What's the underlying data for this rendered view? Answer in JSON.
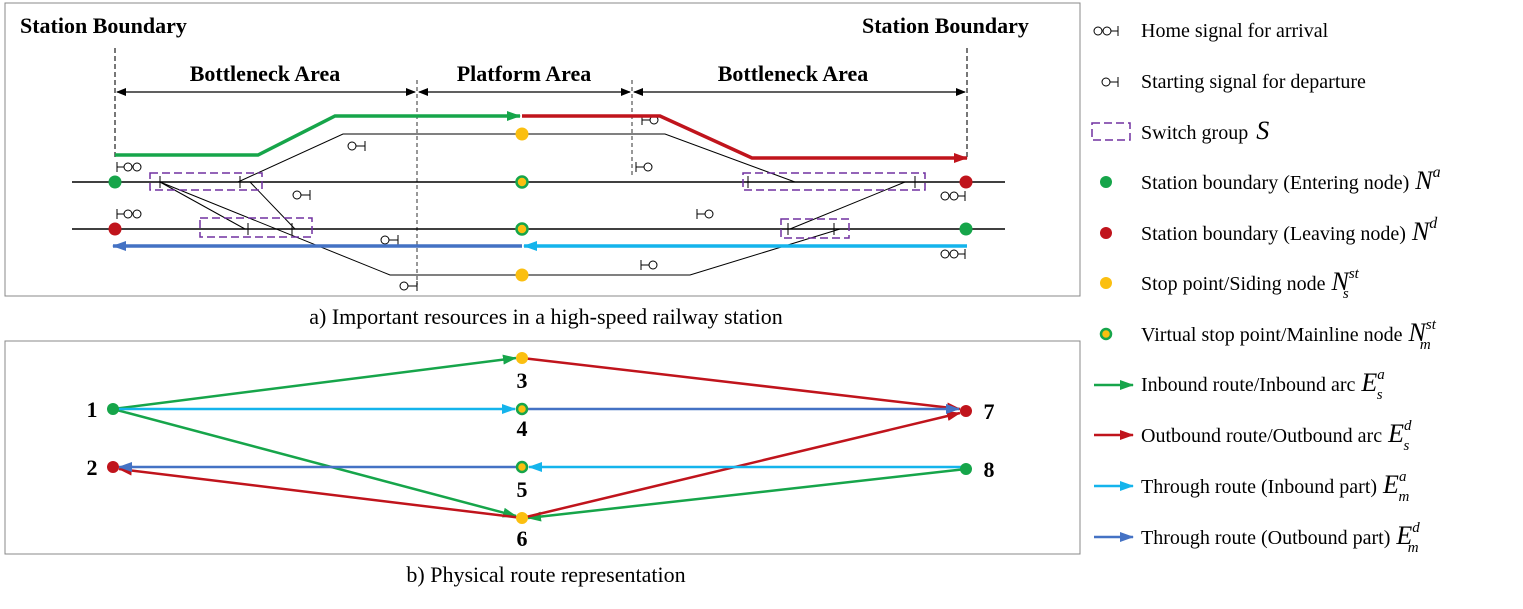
{
  "panel_a": {
    "station_boundary_left": "Station Boundary",
    "station_boundary_right": "Station Boundary",
    "bottleneck_left": "Bottleneck Area",
    "platform": "Platform Area",
    "bottleneck_right": "Bottleneck Area",
    "caption": "a) Important resources in a high-speed railway station"
  },
  "panel_b": {
    "caption": "b) Physical route representation",
    "node_labels": [
      "1",
      "2",
      "3",
      "4",
      "5",
      "6",
      "7",
      "8"
    ]
  },
  "legend": [
    {
      "text": "Home signal for arrival",
      "sym": "",
      "sup": "",
      "sub": ""
    },
    {
      "text": "Starting signal for departure",
      "sym": "",
      "sup": "",
      "sub": ""
    },
    {
      "text": "Switch group",
      "sym": "S",
      "sup": "",
      "sub": ""
    },
    {
      "text": "Station boundary (Entering node)",
      "sym": "N",
      "sup": "a",
      "sub": ""
    },
    {
      "text": "Station boundary (Leaving node)",
      "sym": "N",
      "sup": "d",
      "sub": ""
    },
    {
      "text": "Stop point/Siding node",
      "sym": "N",
      "sup": "st",
      "sub": "s"
    },
    {
      "text": "Virtual stop point/Mainline node",
      "sym": "N",
      "sup": "st",
      "sub": "m"
    },
    {
      "text": "Inbound route/Inbound arc",
      "sym": "E",
      "sup": "a",
      "sub": "s"
    },
    {
      "text": "Outbound route/Outbound arc",
      "sym": "E",
      "sup": "d",
      "sub": "s"
    },
    {
      "text": "Through route (Inbound part)",
      "sym": "E",
      "sup": "a",
      "sub": "m"
    },
    {
      "text": "Through route (Outbound part)",
      "sym": "E",
      "sup": "d",
      "sub": "m"
    }
  ],
  "colors": {
    "inbound": "#16a54a",
    "outbound": "#c0141c",
    "through_in": "#14b4ec",
    "through_out": "#4472c4",
    "stop": "#fbbf10",
    "switch": "#7030a0"
  }
}
